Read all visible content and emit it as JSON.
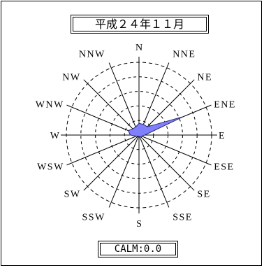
{
  "chart_data": {
    "type": "radar",
    "title": "平成２４年１１月",
    "directions": [
      "N",
      "NNE",
      "NE",
      "ENE",
      "E",
      "ESE",
      "SE",
      "SSE",
      "S",
      "SSW",
      "SW",
      "WSW",
      "W",
      "WNW",
      "NW",
      "NNW"
    ],
    "direction_labels": [
      "N",
      "NNE",
      "NE",
      "ENE",
      "E",
      "ESE",
      "SE",
      "SSE",
      "S",
      "SSW",
      "SW",
      "WSW",
      "W",
      "WNW",
      "NW",
      "NNW"
    ],
    "values": [
      4,
      4,
      4,
      16.5,
      2,
      1,
      1,
      0.5,
      0.5,
      0.5,
      0.5,
      1,
      3,
      4,
      3,
      3
    ],
    "scale_max": 25,
    "ring_values": [
      5,
      10,
      15,
      20,
      25
    ],
    "fill_color": "#8080ff",
    "stroke_color": "#2b2b6b",
    "calm_label": "CALM:0.0"
  }
}
